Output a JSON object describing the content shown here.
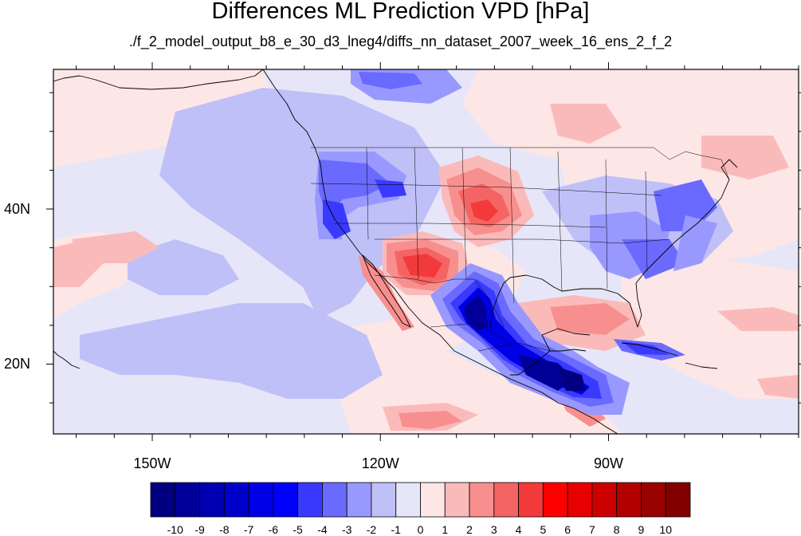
{
  "title": "Differences ML Prediction VPD [hPa]",
  "subtitle": "./f_2_model_output_b8_e_30_d3_lneg4/diffs_nn_dataset_2007_week_16_ens_2_f_2",
  "map": {
    "lon_range": [
      -163,
      -65
    ],
    "lat_range": [
      11,
      58
    ],
    "lon_ticks": [
      {
        "value": -150,
        "label": "150W"
      },
      {
        "value": -120,
        "label": "120W"
      },
      {
        "value": -90,
        "label": "90W"
      }
    ],
    "lat_ticks": [
      {
        "value": 40,
        "label": "40N"
      },
      {
        "value": 20,
        "label": "20N"
      }
    ]
  },
  "colorbar": {
    "labels": [
      "-10",
      "-9",
      "-8",
      "-7",
      "-6",
      "-5",
      "-4",
      "-3",
      "-2",
      "-1",
      "0",
      "1",
      "2",
      "3",
      "4",
      "5",
      "6",
      "7",
      "8",
      "9",
      "10"
    ],
    "colors": [
      "#000080",
      "#000099",
      "#0000b2",
      "#0000cc",
      "#0000e6",
      "#0000ff",
      "#3a3aff",
      "#6a6aff",
      "#9898ff",
      "#c0c0f8",
      "#e6e6f8",
      "#fde6e6",
      "#fbbaba",
      "#f88f8f",
      "#f56464",
      "#f33a3a",
      "#ff0000",
      "#e60000",
      "#cc0000",
      "#b20000",
      "#990000",
      "#800000"
    ]
  }
}
